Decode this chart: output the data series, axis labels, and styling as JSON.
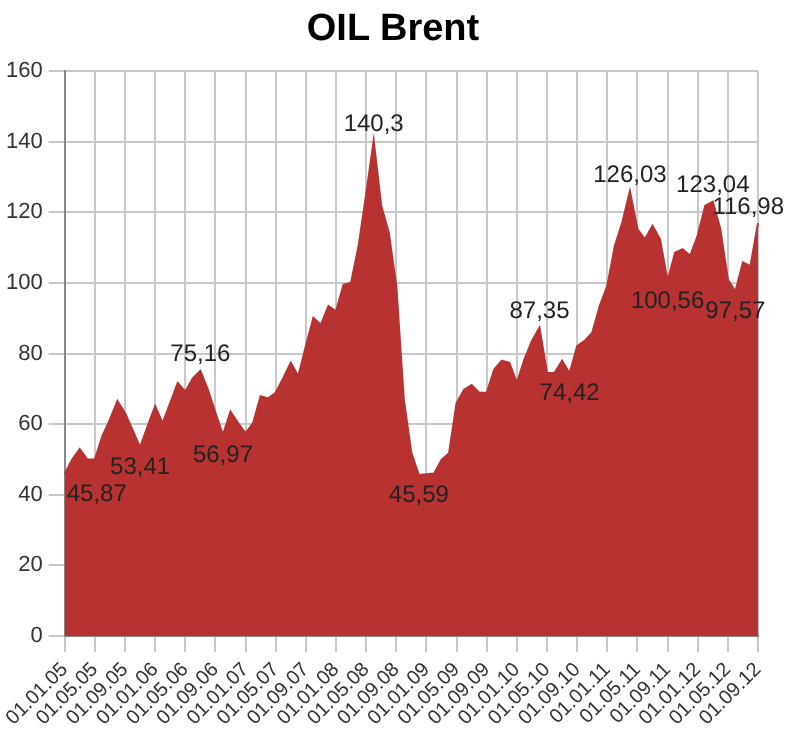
{
  "chart_data": {
    "type": "area",
    "title": "OIL Brent",
    "categories": [
      "01.01.05",
      null,
      null,
      null,
      "01.05.05",
      null,
      null,
      null,
      "01.09.05",
      null,
      null,
      null,
      "01.01.06",
      null,
      null,
      null,
      "01.05.06",
      null,
      null,
      null,
      "01.09.06",
      null,
      null,
      null,
      "01.01.07",
      null,
      null,
      null,
      "01.05.07",
      null,
      null,
      null,
      "01.09.07",
      null,
      null,
      null,
      "01.01.08",
      null,
      null,
      null,
      "01.05.08",
      null,
      null,
      null,
      "01.09.08",
      null,
      null,
      null,
      "01.01.09",
      null,
      null,
      null,
      "01.05.09",
      null,
      null,
      null,
      "01.09.09",
      null,
      null,
      null,
      "01.01.10",
      null,
      null,
      null,
      "01.05.10",
      null,
      null,
      null,
      "01.09.10",
      null,
      null,
      null,
      "01.01.11",
      null,
      null,
      null,
      "01.05.11",
      null,
      null,
      null,
      "01.09.11",
      null,
      null,
      null,
      "01.01.12",
      null,
      null,
      null,
      "01.05.12",
      null,
      null,
      null,
      "01.09.12"
    ],
    "series": [
      {
        "color": "#b83232",
        "values": [
          45.87,
          50,
          53,
          50,
          50,
          56.6,
          61.3,
          66.6,
          63.2,
          58.4,
          53.41,
          59.4,
          65.1,
          60.3,
          66,
          71.7,
          69.2,
          73,
          75.16,
          69.8,
          63.2,
          56.97,
          63.6,
          60.3,
          57.5,
          60.3,
          67.9,
          67.3,
          68.9,
          73,
          77.4,
          73.6,
          82.1,
          90.1,
          88.2,
          93.5,
          92,
          99.5,
          100.1,
          110.5,
          125,
          140.3,
          121.9,
          114.3,
          99.2,
          67,
          51.8,
          45.59,
          45.8,
          46,
          49.9,
          51.8,
          66,
          69.8,
          71.1,
          68.9,
          68.9,
          75.5,
          78,
          77.4,
          71.7,
          78.3,
          83.6,
          87.35,
          74.5,
          74.5,
          78,
          74.42,
          82.1,
          83.6,
          85.9,
          93.5,
          99.2,
          110.5,
          117.2,
          126.03,
          115.3,
          112.4,
          116.2,
          112.4,
          100.56,
          108.6,
          109.6,
          107.7,
          113.4,
          121.9,
          123.04,
          115.3,
          101,
          97.57,
          105.8,
          104.8,
          116.98
        ],
        "value_labels": [
          "45,87",
          null,
          null,
          null,
          null,
          null,
          null,
          null,
          null,
          null,
          "53,41",
          null,
          null,
          null,
          null,
          null,
          null,
          null,
          "75,16",
          null,
          null,
          "56,97",
          null,
          null,
          null,
          null,
          null,
          null,
          null,
          null,
          null,
          null,
          null,
          null,
          null,
          null,
          null,
          null,
          null,
          null,
          null,
          "140,3",
          null,
          null,
          null,
          null,
          null,
          "45,59",
          null,
          null,
          null,
          null,
          null,
          null,
          null,
          null,
          null,
          null,
          null,
          null,
          null,
          null,
          null,
          "87,35",
          null,
          null,
          null,
          "74,42",
          null,
          null,
          null,
          null,
          null,
          null,
          null,
          "126,03",
          null,
          null,
          null,
          null,
          "100,56",
          null,
          null,
          null,
          null,
          null,
          "123,04",
          null,
          null,
          "97,57",
          null,
          null,
          "116,98"
        ]
      }
    ],
    "ylim": [
      0,
      160
    ],
    "yticks": [
      0,
      20,
      40,
      60,
      80,
      100,
      120,
      140,
      160
    ],
    "grid": true,
    "legend": false
  }
}
